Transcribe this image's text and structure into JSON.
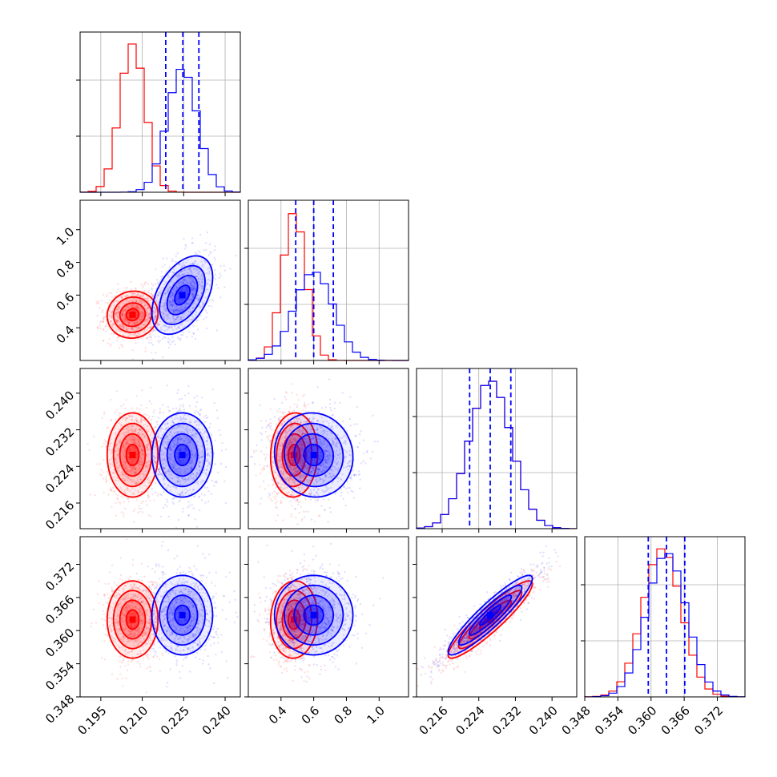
{
  "chart_data": {
    "type": "corner",
    "title": "",
    "colors": {
      "set_a": "#ff0000",
      "set_b": "#0000ff",
      "grid": "#b0b0b0"
    },
    "grid": true,
    "parameters": [
      {
        "ticks": [
          0.195,
          0.21,
          0.225,
          0.24
        ],
        "tick_labels": [
          "0.195",
          "0.210",
          "0.225",
          "0.240"
        ],
        "range": [
          0.1875,
          0.2455
        ]
      },
      {
        "ticks": [
          0.4,
          0.6,
          0.8,
          1.0
        ],
        "tick_labels": [
          "0.4",
          "0.6",
          "0.8",
          "1.0"
        ],
        "range": [
          0.2,
          1.18
        ]
      },
      {
        "ticks": [
          0.216,
          0.224,
          0.232,
          0.24
        ],
        "tick_labels": [
          "0.216",
          "0.224",
          "0.232",
          "0.240"
        ],
        "range": [
          0.2104,
          0.2454
        ]
      },
      {
        "ticks": [
          0.348,
          0.354,
          0.36,
          0.366,
          0.372
        ],
        "tick_labels": [
          "0.348",
          "0.354",
          "0.360",
          "0.366",
          "0.372"
        ],
        "range": [
          0.348,
          0.377
        ]
      }
    ],
    "series": [
      {
        "color": "#ff0000",
        "params": [
          {
            "mean": 0.2065,
            "sd": 0.0046
          },
          {
            "mean": 0.48,
            "sd": 0.072
          },
          {
            "mean": 0.2265,
            "sd": 0.0046
          },
          {
            "mean": 0.362,
            "sd": 0.0035
          }
        ],
        "correlations": {
          "0-1": 0.05,
          "0-2": 0.0,
          "0-3": 0.0,
          "1-2": 0.05,
          "1-3": 0.05,
          "2-3": 0.92
        }
      },
      {
        "color": "#0000ff",
        "params": [
          {
            "mean": 0.2245,
            "sd": 0.0055
          },
          {
            "mean": 0.6,
            "sd": 0.12
          },
          {
            "mean": 0.2265,
            "sd": 0.0046
          },
          {
            "mean": 0.3628,
            "sd": 0.0036
          }
        ],
        "correlations": {
          "0-1": 0.45,
          "0-2": 0.0,
          "0-3": 0.0,
          "1-2": -0.05,
          "1-3": 0.0,
          "2-3": 0.92
        }
      }
    ],
    "quantile_lines": {
      "color": "#0000ff",
      "p0": [
        0.2185,
        0.2247,
        0.2305
      ],
      "p1": [
        0.49,
        0.6,
        0.72
      ],
      "p2": [
        0.222,
        0.2265,
        0.231
      ],
      "p3": [
        0.3595,
        0.3628,
        0.3661
      ]
    }
  }
}
